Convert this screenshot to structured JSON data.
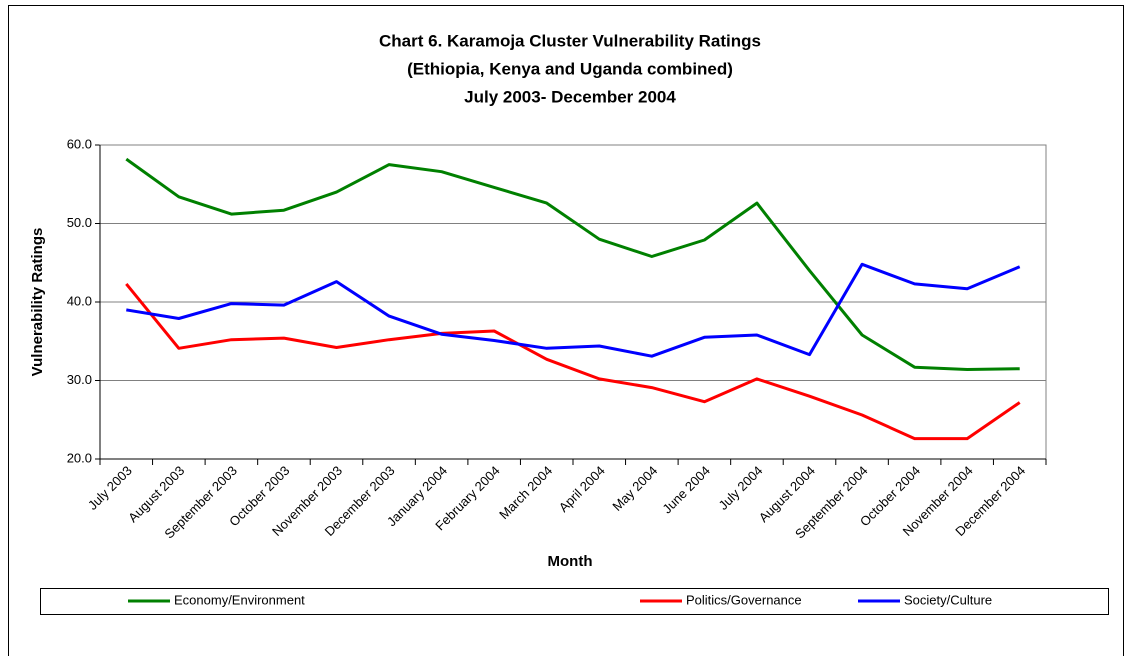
{
  "chart_data": {
    "type": "line",
    "title": [
      "Chart 6. Karamoja Cluster Vulnerability Ratings",
      "(Ethiopia, Kenya and Uganda combined)",
      "July 2003- December 2004"
    ],
    "x_label": "Month",
    "y_label": "Vulnerability Ratings",
    "categories": [
      "July 2003",
      "August 2003",
      "September 2003",
      "October 2003",
      "November 2003",
      "December 2003",
      "January 2004",
      "February 2004",
      "March 2004",
      "April 2004",
      "May 2004",
      "June 2004",
      "July 2004",
      "August 2004",
      "September 2004",
      "October 2004",
      "November 2004",
      "December 2004"
    ],
    "series": [
      {
        "name": "Economy/Environment",
        "color": "#008000",
        "values": [
          58.2,
          53.4,
          51.2,
          51.7,
          54.0,
          57.5,
          56.6,
          54.6,
          52.6,
          48.0,
          45.8,
          47.9,
          52.6,
          44.0,
          35.8,
          31.7,
          31.4,
          31.5
        ]
      },
      {
        "name": "Politics/Governance",
        "color": "#ff0000",
        "values": [
          42.3,
          34.1,
          35.2,
          35.4,
          34.2,
          35.2,
          36.0,
          36.3,
          32.7,
          30.2,
          29.1,
          27.3,
          30.2,
          28.0,
          25.6,
          22.6,
          22.6,
          27.2
        ]
      },
      {
        "name": "Society/Culture",
        "color": "#0000ff",
        "values": [
          39.0,
          37.9,
          39.8,
          39.6,
          42.6,
          38.2,
          35.9,
          35.1,
          34.1,
          34.4,
          33.1,
          35.5,
          35.8,
          33.3,
          44.8,
          42.3,
          41.7,
          44.5
        ]
      }
    ],
    "ylim": [
      20,
      60
    ],
    "yticks": [
      {
        "value": 20,
        "label": "20.0"
      },
      {
        "value": 30,
        "label": "30.0"
      },
      {
        "value": 40,
        "label": "40.0"
      },
      {
        "value": 50,
        "label": "50.0"
      },
      {
        "value": 60,
        "label": "60.0"
      }
    ],
    "grid": true,
    "legend": "bottom"
  }
}
